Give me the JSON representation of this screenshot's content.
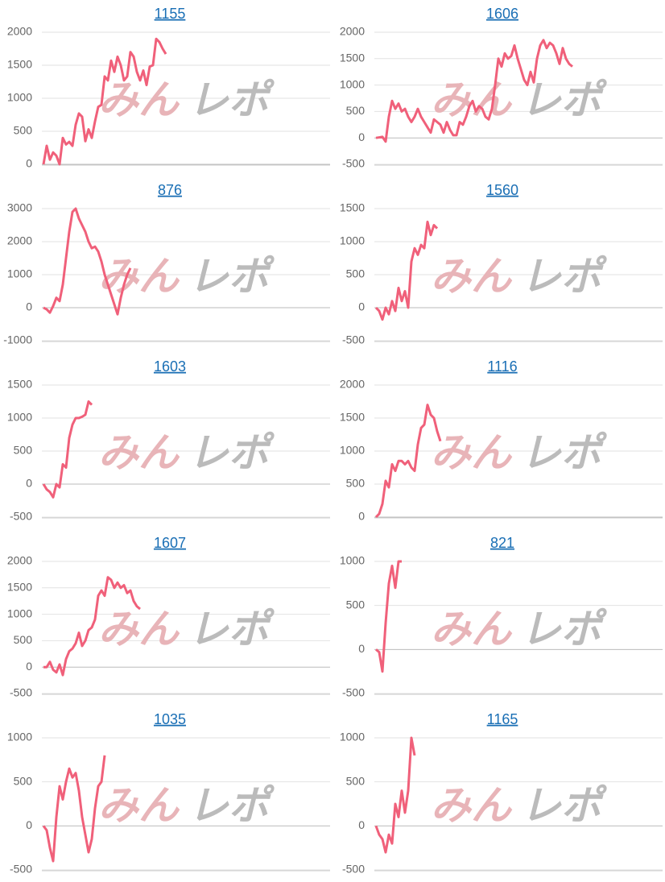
{
  "watermark": [
    "みん",
    "レポ"
  ],
  "chart_data": [
    {
      "type": "line",
      "title": "1155",
      "color": "#f0607a",
      "ylim": [
        0,
        2000
      ],
      "yticks": [
        0,
        500,
        1000,
        1500,
        2000
      ],
      "grid": true,
      "values": [
        0,
        280,
        70,
        180,
        130,
        0,
        400,
        300,
        340,
        280,
        600,
        770,
        720,
        350,
        530,
        400,
        650,
        870,
        900,
        1330,
        1270,
        1570,
        1400,
        1630,
        1500,
        1270,
        1330,
        1700,
        1630,
        1400,
        1270,
        1420,
        1200,
        1480,
        1500,
        1900,
        1850,
        1750,
        1670
      ]
    },
    {
      "type": "line",
      "title": "1606",
      "color": "#f0607a",
      "ylim": [
        -500,
        2000
      ],
      "yticks": [
        -500,
        0,
        500,
        1000,
        1500,
        2000
      ],
      "grid": true,
      "values": [
        0,
        10,
        20,
        -70,
        400,
        700,
        550,
        650,
        500,
        550,
        400,
        300,
        400,
        550,
        400,
        300,
        200,
        100,
        350,
        300,
        250,
        100,
        300,
        150,
        50,
        50,
        300,
        250,
        400,
        600,
        700,
        500,
        600,
        550,
        400,
        350,
        550,
        1000,
        1500,
        1350,
        1600,
        1500,
        1550,
        1750,
        1500,
        1300,
        1100,
        1000,
        1250,
        1050,
        1500,
        1750,
        1850,
        1700,
        1800,
        1750,
        1600,
        1400,
        1700,
        1500,
        1400,
        1350
      ]
    },
    {
      "type": "line",
      "title": "876",
      "color": "#f0607a",
      "ylim": [
        -1000,
        3000
      ],
      "yticks": [
        -1000,
        0,
        1000,
        2000,
        3000
      ],
      "grid": true,
      "values": [
        0,
        -50,
        -150,
        50,
        300,
        200,
        700,
        1500,
        2300,
        2900,
        3000,
        2700,
        2500,
        2300,
        2000,
        1800,
        1850,
        1700,
        1400,
        1000,
        700,
        400,
        100,
        -200,
        300,
        700,
        1000,
        1200
      ]
    },
    {
      "type": "line",
      "title": "1560",
      "color": "#f0607a",
      "ylim": [
        -500,
        1500
      ],
      "yticks": [
        -500,
        0,
        500,
        1000,
        1500
      ],
      "grid": true,
      "values": [
        0,
        -50,
        -180,
        0,
        -100,
        100,
        -50,
        300,
        100,
        250,
        0,
        700,
        900,
        800,
        950,
        900,
        1300,
        1100,
        1250,
        1200
      ]
    },
    {
      "type": "line",
      "title": "1603",
      "color": "#f0607a",
      "ylim": [
        -500,
        1500
      ],
      "yticks": [
        -500,
        0,
        500,
        1000,
        1500
      ],
      "grid": true,
      "values": [
        0,
        -80,
        -120,
        -200,
        0,
        -50,
        300,
        250,
        700,
        900,
        1000,
        1000,
        1020,
        1050,
        1250,
        1200
      ]
    },
    {
      "type": "line",
      "title": "1116",
      "color": "#f0607a",
      "ylim": [
        0,
        2000
      ],
      "yticks": [
        0,
        500,
        1000,
        1500,
        2000
      ],
      "grid": true,
      "values": [
        0,
        50,
        200,
        550,
        450,
        800,
        700,
        850,
        850,
        800,
        850,
        750,
        700,
        1100,
        1350,
        1400,
        1700,
        1550,
        1500,
        1300,
        1150
      ]
    },
    {
      "type": "line",
      "title": "1607",
      "color": "#f0607a",
      "ylim": [
        -500,
        2000
      ],
      "yticks": [
        -500,
        0,
        500,
        1000,
        1500,
        2000
      ],
      "grid": true,
      "values": [
        0,
        0,
        100,
        -50,
        -100,
        50,
        -150,
        150,
        300,
        350,
        450,
        650,
        400,
        500,
        700,
        750,
        900,
        1350,
        1450,
        1350,
        1700,
        1650,
        1500,
        1600,
        1500,
        1550,
        1400,
        1450,
        1250,
        1150,
        1100
      ]
    },
    {
      "type": "line",
      "title": "821",
      "color": "#f0607a",
      "ylim": [
        -500,
        1000
      ],
      "yticks": [
        -500,
        0,
        500,
        1000
      ],
      "grid": true,
      "values": [
        0,
        -30,
        -250,
        300,
        750,
        950,
        700,
        1000,
        1000
      ]
    },
    {
      "type": "line",
      "title": "1035",
      "color": "#f0607a",
      "ylim": [
        -500,
        1000
      ],
      "yticks": [
        -500,
        0,
        500,
        1000
      ],
      "grid": true,
      "values": [
        0,
        -50,
        -250,
        -400,
        100,
        450,
        300,
        500,
        650,
        550,
        600,
        400,
        100,
        -100,
        -300,
        -150,
        200,
        450,
        500,
        800
      ]
    },
    {
      "type": "line",
      "title": "1165",
      "color": "#f0607a",
      "ylim": [
        -500,
        1000
      ],
      "yticks": [
        -500,
        0,
        500,
        1000
      ],
      "grid": true,
      "values": [
        0,
        -100,
        -150,
        -300,
        -100,
        -200,
        250,
        100,
        400,
        150,
        400,
        1000,
        800
      ]
    }
  ]
}
